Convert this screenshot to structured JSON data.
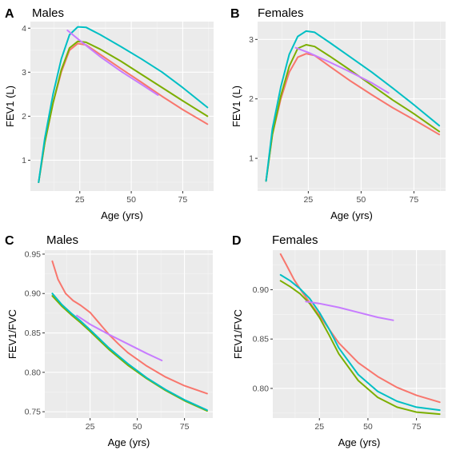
{
  "figure": {
    "colors": {
      "panel_bg": "#EBEBEB",
      "grid_major": "#FFFFFF",
      "grid_minor": "#F5F5F5",
      "tick": "#333333"
    }
  },
  "chart_data": [
    {
      "letter": "A",
      "title": "Males",
      "type": "line",
      "xlabel": "Age (yrs)",
      "ylabel": "FEV1 (L)",
      "xlim": [
        1,
        90
      ],
      "ylim": [
        0.3,
        4.15
      ],
      "xticks": [
        25,
        50,
        75
      ],
      "yticks": [
        1,
        2,
        3,
        4
      ],
      "xtick_labels": [
        "25",
        "50",
        "75"
      ],
      "ytick_labels": [
        "1",
        "2",
        "3",
        "4"
      ],
      "grid": true,
      "series": [
        {
          "color": "#F8766D",
          "x": [
            5,
            8,
            12,
            16,
            20,
            24,
            28,
            35,
            45,
            55,
            65,
            75,
            87
          ],
          "y": [
            0.5,
            1.4,
            2.3,
            3.0,
            3.5,
            3.65,
            3.62,
            3.4,
            3.08,
            2.77,
            2.45,
            2.15,
            1.82
          ]
        },
        {
          "color": "#7CAE00",
          "x": [
            5,
            8,
            12,
            16,
            20,
            24,
            28,
            35,
            45,
            55,
            65,
            75,
            87
          ],
          "y": [
            0.5,
            1.4,
            2.3,
            3.05,
            3.55,
            3.7,
            3.68,
            3.52,
            3.25,
            2.95,
            2.65,
            2.35,
            2.0
          ]
        },
        {
          "color": "#00BFC4",
          "x": [
            5,
            8,
            12,
            16,
            20,
            24,
            28,
            35,
            45,
            55,
            65,
            75,
            87
          ],
          "y": [
            0.5,
            1.5,
            2.5,
            3.3,
            3.85,
            4.03,
            4.02,
            3.85,
            3.58,
            3.3,
            3.0,
            2.65,
            2.2
          ]
        },
        {
          "color": "#C77CFF",
          "x": [
            19,
            25,
            35,
            45,
            55,
            63
          ],
          "y": [
            3.95,
            3.72,
            3.35,
            3.02,
            2.72,
            2.48
          ]
        }
      ]
    },
    {
      "letter": "B",
      "title": "Females",
      "type": "line",
      "xlabel": "Age (yrs)",
      "ylabel": "FEV1 (L)",
      "xlim": [
        1,
        90
      ],
      "ylim": [
        0.45,
        3.3
      ],
      "xticks": [
        25,
        50,
        75
      ],
      "yticks": [
        1,
        2,
        3
      ],
      "xtick_labels": [
        "25",
        "50",
        "75"
      ],
      "ytick_labels": [
        "1",
        "2",
        "3"
      ],
      "grid": true,
      "series": [
        {
          "color": "#F8766D",
          "x": [
            5,
            8,
            12,
            16,
            20,
            24,
            28,
            35,
            45,
            55,
            65,
            75,
            87
          ],
          "y": [
            0.62,
            1.4,
            2.0,
            2.45,
            2.7,
            2.76,
            2.73,
            2.55,
            2.3,
            2.07,
            1.85,
            1.65,
            1.4
          ]
        },
        {
          "color": "#7CAE00",
          "x": [
            5,
            8,
            12,
            16,
            20,
            24,
            28,
            35,
            45,
            55,
            65,
            75,
            87
          ],
          "y": [
            0.62,
            1.4,
            2.05,
            2.55,
            2.85,
            2.91,
            2.88,
            2.72,
            2.48,
            2.23,
            1.98,
            1.75,
            1.45
          ]
        },
        {
          "color": "#00BFC4",
          "x": [
            5,
            8,
            12,
            16,
            20,
            24,
            28,
            35,
            45,
            55,
            65,
            75,
            87
          ],
          "y": [
            0.62,
            1.5,
            2.2,
            2.75,
            3.05,
            3.14,
            3.12,
            2.95,
            2.7,
            2.45,
            2.18,
            1.9,
            1.55
          ]
        },
        {
          "color": "#C77CFF",
          "x": [
            19,
            25,
            35,
            45,
            55,
            63
          ],
          "y": [
            2.86,
            2.78,
            2.62,
            2.45,
            2.27,
            2.1
          ]
        }
      ]
    },
    {
      "letter": "C",
      "title": "Males",
      "type": "line",
      "xlabel": "Age (yrs)",
      "ylabel": "FEV1/FVC",
      "xlim": [
        1,
        90
      ],
      "ylim": [
        0.742,
        0.955
      ],
      "xticks": [
        25,
        50,
        75
      ],
      "yticks": [
        0.75,
        0.8,
        0.85,
        0.9,
        0.95
      ],
      "xtick_labels": [
        "25",
        "50",
        "75"
      ],
      "ytick_labels": [
        "0.75",
        "0.80",
        "0.85",
        "0.90",
        "0.95"
      ],
      "grid": true,
      "series": [
        {
          "color": "#F8766D",
          "x": [
            5,
            8,
            12,
            16,
            20,
            25,
            30,
            35,
            40,
            45,
            55,
            65,
            75,
            87
          ],
          "y": [
            0.941,
            0.918,
            0.9,
            0.891,
            0.885,
            0.876,
            0.862,
            0.848,
            0.836,
            0.825,
            0.808,
            0.794,
            0.783,
            0.773
          ]
        },
        {
          "color": "#7CAE00",
          "x": [
            5,
            10,
            15,
            20,
            25,
            35,
            45,
            55,
            65,
            75,
            87
          ],
          "y": [
            0.897,
            0.884,
            0.873,
            0.863,
            0.852,
            0.829,
            0.809,
            0.792,
            0.777,
            0.764,
            0.751
          ]
        },
        {
          "color": "#00BFC4",
          "x": [
            5,
            10,
            15,
            20,
            25,
            35,
            45,
            55,
            65,
            75,
            87
          ],
          "y": [
            0.9,
            0.886,
            0.875,
            0.865,
            0.854,
            0.831,
            0.811,
            0.793,
            0.778,
            0.765,
            0.752
          ]
        },
        {
          "color": "#C77CFF",
          "x": [
            18,
            25,
            35,
            45,
            55,
            63
          ],
          "y": [
            0.872,
            0.861,
            0.848,
            0.836,
            0.824,
            0.815
          ]
        }
      ]
    },
    {
      "letter": "D",
      "title": "Females",
      "type": "line",
      "xlabel": "Age (yrs)",
      "ylabel": "FEV1/FVC",
      "xlim": [
        1,
        90
      ],
      "ylim": [
        0.77,
        0.94
      ],
      "xticks": [
        25,
        50,
        75
      ],
      "yticks": [
        0.8,
        0.85,
        0.9
      ],
      "xtick_labels": [
        "25",
        "50",
        "75"
      ],
      "ytick_labels": [
        "0.80",
        "0.85",
        "0.90"
      ],
      "grid": true,
      "series": [
        {
          "color": "#F8766D",
          "x": [
            5,
            8,
            12,
            16,
            20,
            25,
            30,
            35,
            45,
            55,
            65,
            75,
            87
          ],
          "y": [
            0.936,
            0.925,
            0.91,
            0.898,
            0.887,
            0.874,
            0.86,
            0.846,
            0.826,
            0.812,
            0.801,
            0.793,
            0.786
          ]
        },
        {
          "color": "#7CAE00",
          "x": [
            5,
            10,
            15,
            20,
            25,
            30,
            35,
            45,
            55,
            65,
            75,
            87
          ],
          "y": [
            0.909,
            0.903,
            0.896,
            0.886,
            0.872,
            0.854,
            0.835,
            0.808,
            0.791,
            0.781,
            0.776,
            0.774
          ]
        },
        {
          "color": "#00BFC4",
          "x": [
            5,
            10,
            15,
            20,
            25,
            30,
            35,
            45,
            55,
            65,
            75,
            87
          ],
          "y": [
            0.915,
            0.909,
            0.901,
            0.891,
            0.877,
            0.86,
            0.841,
            0.814,
            0.797,
            0.787,
            0.781,
            0.778
          ]
        },
        {
          "color": "#C77CFF",
          "x": [
            18,
            25,
            35,
            45,
            55,
            63
          ],
          "y": [
            0.888,
            0.886,
            0.882,
            0.877,
            0.872,
            0.869
          ]
        }
      ]
    }
  ]
}
